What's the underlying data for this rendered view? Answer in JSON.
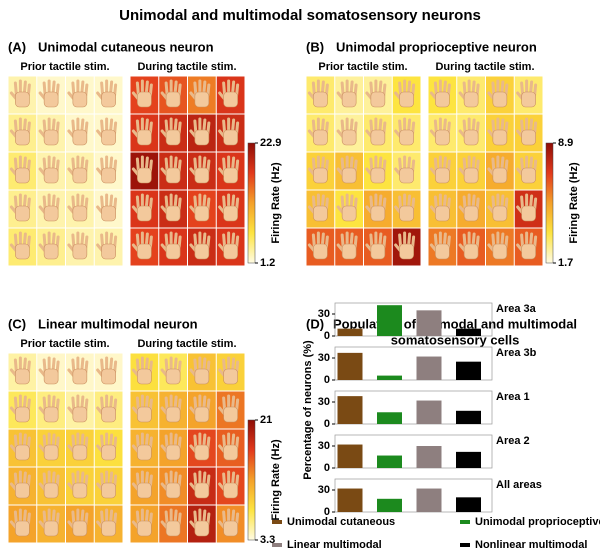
{
  "title": "Unimodal and multimodal somatosensory neurons",
  "chart_data": [
    {
      "type": "heatmap",
      "label": "(A)",
      "title": "Unimodal cutaneous neuron",
      "colorbar_label": "Firing Rate (Hz)",
      "zlim": [
        1.2,
        22.9
      ],
      "zticks": [
        1.2,
        22.9
      ],
      "colormap": [
        "#fffbe3",
        "#fde440",
        "#f4a12a",
        "#e2391c",
        "#8e0d06"
      ],
      "series": [
        {
          "name": "Prior tactile stim.",
          "values": [
            [
              3,
              2,
              2,
              2
            ],
            [
              4,
              3,
              2,
              2
            ],
            [
              5,
              3,
              3,
              2
            ],
            [
              4,
              3,
              3,
              2
            ],
            [
              5,
              4,
              3,
              3
            ]
          ]
        },
        {
          "name": "During tactile stim.",
          "values": [
            [
              17,
              16,
              14,
              18
            ],
            [
              18,
              19,
              20,
              19
            ],
            [
              22,
              19,
              19,
              18
            ],
            [
              18,
              19,
              17,
              18
            ],
            [
              17,
              18,
              19,
              18
            ]
          ]
        }
      ]
    },
    {
      "type": "heatmap",
      "label": "(B)",
      "title": "Unimodal proprioceptive neuron",
      "colorbar_label": "Firing Rate (Hz)",
      "zlim": [
        1.7,
        8.9
      ],
      "zticks": [
        1.7,
        8.9
      ],
      "colormap": [
        "#fffbe3",
        "#fde440",
        "#f4a12a",
        "#e2391c",
        "#8e0d06"
      ],
      "series": [
        {
          "name": "Prior tactile stim.",
          "values": [
            [
              3,
              2.5,
              2.5,
              3.5
            ],
            [
              3,
              2.5,
              3,
              3
            ],
            [
              4,
              4.5,
              3.5,
              3
            ],
            [
              4.5,
              3.5,
              5,
              4.5
            ],
            [
              6.5,
              6.5,
              6.5,
              8.5
            ]
          ]
        },
        {
          "name": "During tactile stim.",
          "values": [
            [
              3.5,
              3,
              4,
              3
            ],
            [
              3,
              3,
              4,
              4
            ],
            [
              4,
              4,
              5,
              4
            ],
            [
              4.5,
              5,
              4.5,
              7.5
            ],
            [
              6,
              6.5,
              6,
              6.5
            ]
          ]
        }
      ]
    },
    {
      "type": "heatmap",
      "label": "(C)",
      "title": "Linear multimodal neuron",
      "colorbar_label": "Firing Rate (Hz)",
      "zlim": [
        3.3,
        21
      ],
      "zticks": [
        3.3,
        21
      ],
      "colormap": [
        "#fffbe3",
        "#fde440",
        "#f4a12a",
        "#e2391c",
        "#8e0d06"
      ],
      "series": [
        {
          "name": "Prior tactile stim.",
          "values": [
            [
              5,
              4,
              4,
              4
            ],
            [
              7,
              6,
              5,
              6
            ],
            [
              10,
              9,
              9,
              8
            ],
            [
              11,
              10,
              9,
              9
            ],
            [
              12,
              11,
              12,
              11
            ]
          ]
        },
        {
          "name": "During tactile stim.",
          "values": [
            [
              8,
              7,
              10,
              9
            ],
            [
              10,
              11,
              12,
              14
            ],
            [
              11,
              12,
              16,
              15
            ],
            [
              12,
              13,
              18,
              16
            ],
            [
              12,
              14,
              19,
              13
            ]
          ]
        }
      ]
    },
    {
      "type": "bar",
      "label": "(D)",
      "title": [
        "Population of unimodal and multimodal",
        "somatosensory cells"
      ],
      "ylabel": "Percentage of neurons (%)",
      "categories": [
        "Area 3a",
        "Area 3b",
        "Area 1",
        "Area 2",
        "All areas"
      ],
      "ylim": [
        0,
        45
      ],
      "yticks": [
        0,
        30
      ],
      "series": [
        {
          "name": "Unimodal cutaneous",
          "color": "#7a4a14",
          "values": [
            10,
            37,
            38,
            32,
            32
          ]
        },
        {
          "name": "Unimodal proprioceptive",
          "color": "#1c8a1e",
          "values": [
            42,
            6,
            16,
            17,
            18
          ]
        },
        {
          "name": "Linear multimodal",
          "color": "#8e7f7f",
          "values": [
            35,
            32,
            32,
            30,
            32
          ]
        },
        {
          "name": "Nonlinear multimodal",
          "color": "#000000",
          "values": [
            10,
            25,
            18,
            22,
            20
          ]
        }
      ]
    }
  ]
}
